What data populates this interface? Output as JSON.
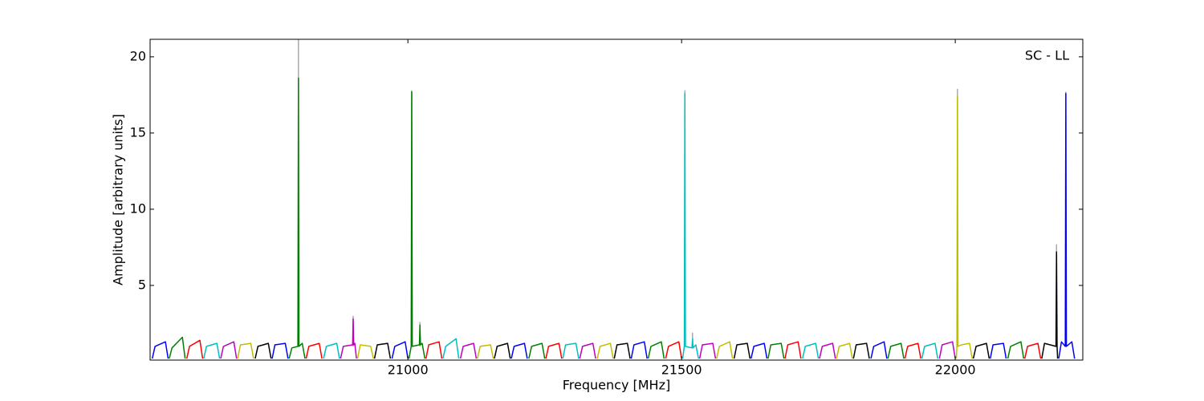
{
  "chart_data": {
    "type": "line",
    "xlabel": "Frequency [MHz]",
    "ylabel": "Amplitude [arbitrary units]",
    "annotation": "SC - LL",
    "xlim": [
      20529,
      22233
    ],
    "ylim": [
      0.1,
      21.15
    ],
    "xticks": [
      21000,
      21500,
      22000
    ],
    "yticks": [
      5,
      10,
      15,
      20
    ],
    "grid": false,
    "series": [
      {
        "color": "#aaaaaa",
        "x": [
          20800,
          20800,
          null,
          20900,
          20900,
          null,
          21007,
          21007,
          null,
          21022,
          21022,
          null,
          21506,
          21506,
          null,
          21520,
          21520,
          null,
          22004,
          22004,
          null,
          22185,
          22185,
          null,
          22202,
          22202
        ],
        "values": [
          1.0,
          21.15,
          null,
          1.0,
          3.0,
          null,
          1.0,
          17.8,
          null,
          1.0,
          2.6,
          null,
          1.0,
          17.8,
          null,
          1.0,
          1.9,
          null,
          1.0,
          17.9,
          null,
          1.0,
          7.7,
          null,
          1.0,
          17.7
        ]
      },
      {
        "color": "#0000ff",
        "x": [
          20533,
          20538,
          20557,
          20562,
          null,
          20752,
          20757,
          20776,
          20781,
          null,
          20971,
          20976,
          20995,
          21000,
          null,
          21189,
          21194,
          21213,
          21218,
          null,
          21408,
          21413,
          21432,
          21437,
          null,
          21627,
          21632,
          21651,
          21656,
          null,
          21846,
          21851,
          21870,
          21875,
          null,
          22064,
          22069,
          22088,
          22093,
          null,
          22189,
          22194,
          22201,
          22202,
          22203,
          22213,
          22218
        ],
        "values": [
          0.2,
          1.0,
          1.3,
          0.2,
          null,
          0.2,
          1.1,
          1.2,
          0.2,
          null,
          0.2,
          1.0,
          1.3,
          0.2,
          null,
          0.2,
          1.0,
          1.2,
          0.2,
          null,
          0.2,
          1.1,
          1.3,
          0.2,
          null,
          0.2,
          1.0,
          1.2,
          0.2,
          null,
          0.2,
          1.0,
          1.3,
          0.2,
          null,
          0.2,
          1.1,
          1.2,
          0.2,
          null,
          0.2,
          1.3,
          1.0,
          17.6,
          1.0,
          1.3,
          0.2
        ]
      },
      {
        "color": "#008000",
        "x": [
          20564,
          20569,
          20588,
          20593,
          null,
          20783,
          20788,
          20799,
          20800,
          20801,
          20807,
          20812,
          null,
          21002,
          21006,
          21007,
          21008,
          21021,
          21022,
          21023,
          21026,
          21031,
          null,
          21221,
          21226,
          21245,
          21250,
          null,
          21439,
          21444,
          21463,
          21468,
          null,
          21658,
          21663,
          21682,
          21687,
          null,
          21877,
          21882,
          21901,
          21906,
          null,
          22096,
          22101,
          22120,
          22125
        ],
        "values": [
          0.2,
          0.9,
          1.6,
          0.2,
          null,
          0.2,
          0.9,
          1.0,
          18.6,
          1.0,
          1.2,
          0.2,
          null,
          0.2,
          1.0,
          17.7,
          1.0,
          1.1,
          2.4,
          1.1,
          1.2,
          0.2,
          null,
          0.2,
          1.0,
          1.2,
          0.2,
          null,
          0.2,
          1.0,
          1.3,
          0.2,
          null,
          0.2,
          1.1,
          1.2,
          0.2,
          null,
          0.2,
          1.0,
          1.2,
          0.2,
          null,
          0.2,
          1.0,
          1.3,
          0.2
        ]
      },
      {
        "color": "#ff0000",
        "x": [
          20596,
          20601,
          20620,
          20625,
          null,
          20814,
          20819,
          20838,
          20843,
          null,
          21033,
          21038,
          21057,
          21062,
          null,
          21252,
          21257,
          21276,
          21281,
          null,
          21471,
          21476,
          21495,
          21500,
          null,
          21689,
          21694,
          21713,
          21718,
          null,
          21908,
          21913,
          21932,
          21937,
          null,
          22127,
          22132,
          22151,
          22156
        ],
        "values": [
          0.2,
          1.0,
          1.4,
          0.2,
          null,
          0.2,
          1.0,
          1.2,
          0.2,
          null,
          0.2,
          1.1,
          1.3,
          0.2,
          null,
          0.2,
          1.0,
          1.2,
          0.2,
          null,
          0.2,
          1.0,
          1.3,
          0.2,
          null,
          0.2,
          1.1,
          1.3,
          0.2,
          null,
          0.2,
          1.0,
          1.2,
          0.2,
          null,
          0.2,
          1.0,
          1.2,
          0.2
        ]
      },
      {
        "color": "#00bfbf",
        "x": [
          20627,
          20632,
          20651,
          20656,
          null,
          20846,
          20851,
          20870,
          20875,
          null,
          21064,
          21069,
          21088,
          21093,
          null,
          21283,
          21288,
          21307,
          21312,
          null,
          21502,
          21505,
          21506,
          21507,
          21519,
          21520,
          21521,
          21526,
          21531,
          null,
          21721,
          21726,
          21745,
          21750,
          null,
          21939,
          21944,
          21963,
          21968
        ],
        "values": [
          0.2,
          1.0,
          1.2,
          0.2,
          null,
          0.2,
          1.0,
          1.2,
          0.2,
          null,
          0.2,
          1.0,
          1.5,
          0.2,
          null,
          0.2,
          1.1,
          1.2,
          0.2,
          null,
          0.2,
          1.0,
          17.6,
          1.0,
          0.9,
          1.5,
          0.9,
          1.1,
          0.2,
          null,
          0.2,
          1.0,
          1.2,
          0.2,
          null,
          0.2,
          1.0,
          1.2,
          0.2
        ]
      },
      {
        "color": "#bf00bf",
        "x": [
          20658,
          20663,
          20682,
          20687,
          null,
          20877,
          20882,
          20899,
          20900,
          20901,
          20903,
          20906,
          null,
          21096,
          21101,
          21120,
          21125,
          null,
          21314,
          21319,
          21338,
          21343,
          null,
          21533,
          21538,
          21557,
          21562,
          null,
          21752,
          21757,
          21776,
          21781,
          null,
          21971,
          21976,
          21995,
          22000
        ],
        "values": [
          0.2,
          1.0,
          1.3,
          0.2,
          null,
          0.2,
          1.0,
          1.1,
          2.8,
          1.1,
          1.2,
          0.2,
          null,
          0.2,
          1.0,
          1.2,
          0.2,
          null,
          0.2,
          1.0,
          1.2,
          0.2,
          null,
          0.2,
          1.1,
          1.2,
          0.2,
          null,
          0.2,
          1.0,
          1.2,
          0.2,
          null,
          0.2,
          1.1,
          1.3,
          0.2
        ]
      },
      {
        "color": "#bfbf00",
        "x": [
          20689,
          20694,
          20713,
          20718,
          null,
          20908,
          20913,
          20932,
          20937,
          null,
          21127,
          21132,
          21151,
          21156,
          null,
          21346,
          21351,
          21370,
          21375,
          null,
          21564,
          21569,
          21588,
          21593,
          null,
          21783,
          21788,
          21807,
          21812,
          null,
          22002,
          22003,
          22004,
          22005,
          22011,
          22026,
          22031
        ],
        "values": [
          0.2,
          1.1,
          1.2,
          0.2,
          null,
          0.2,
          1.1,
          1.0,
          0.2,
          null,
          0.2,
          1.0,
          1.1,
          0.2,
          null,
          0.2,
          1.0,
          1.2,
          0.2,
          null,
          0.2,
          1.0,
          1.3,
          0.2,
          null,
          0.2,
          1.0,
          1.2,
          0.2,
          null,
          0.2,
          1.0,
          17.4,
          1.0,
          1.1,
          1.2,
          0.2
        ]
      },
      {
        "color": "#000000",
        "x": [
          20721,
          20726,
          20745,
          20750,
          null,
          20939,
          20944,
          20963,
          20968,
          null,
          21158,
          21163,
          21182,
          21187,
          null,
          21377,
          21382,
          21401,
          21406,
          null,
          21596,
          21601,
          21620,
          21625,
          null,
          21814,
          21819,
          21838,
          21843,
          null,
          22033,
          22038,
          22057,
          22062,
          null,
          22158,
          22163,
          22184,
          22185,
          22186,
          22187
        ],
        "values": [
          0.2,
          1.0,
          1.2,
          0.2,
          null,
          0.2,
          1.1,
          1.2,
          0.2,
          null,
          0.2,
          1.0,
          1.2,
          0.2,
          null,
          0.2,
          1.1,
          1.2,
          0.2,
          null,
          0.2,
          1.1,
          1.2,
          0.2,
          null,
          0.2,
          1.1,
          1.2,
          0.2,
          null,
          0.2,
          1.0,
          1.2,
          0.2,
          null,
          0.2,
          1.2,
          1.0,
          7.2,
          1.0,
          0.2
        ]
      }
    ]
  }
}
